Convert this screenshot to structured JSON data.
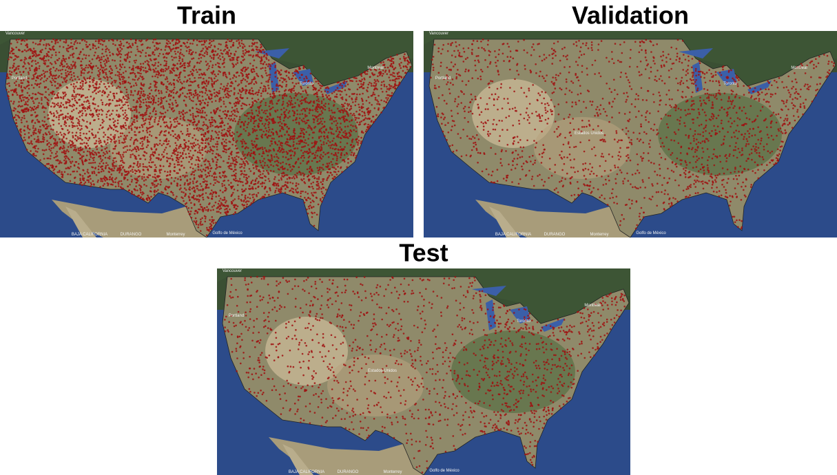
{
  "panels": [
    {
      "title": "Train"
    },
    {
      "title": "Validation"
    },
    {
      "title": "Test"
    }
  ],
  "map_labels": [
    "Vancouver",
    "Portland",
    "Toronto",
    "Montreal",
    "Estados Unidos",
    "Golfo de México",
    "Monterrey",
    "BAJA CALIFORNIA",
    "DURANGO"
  ]
}
